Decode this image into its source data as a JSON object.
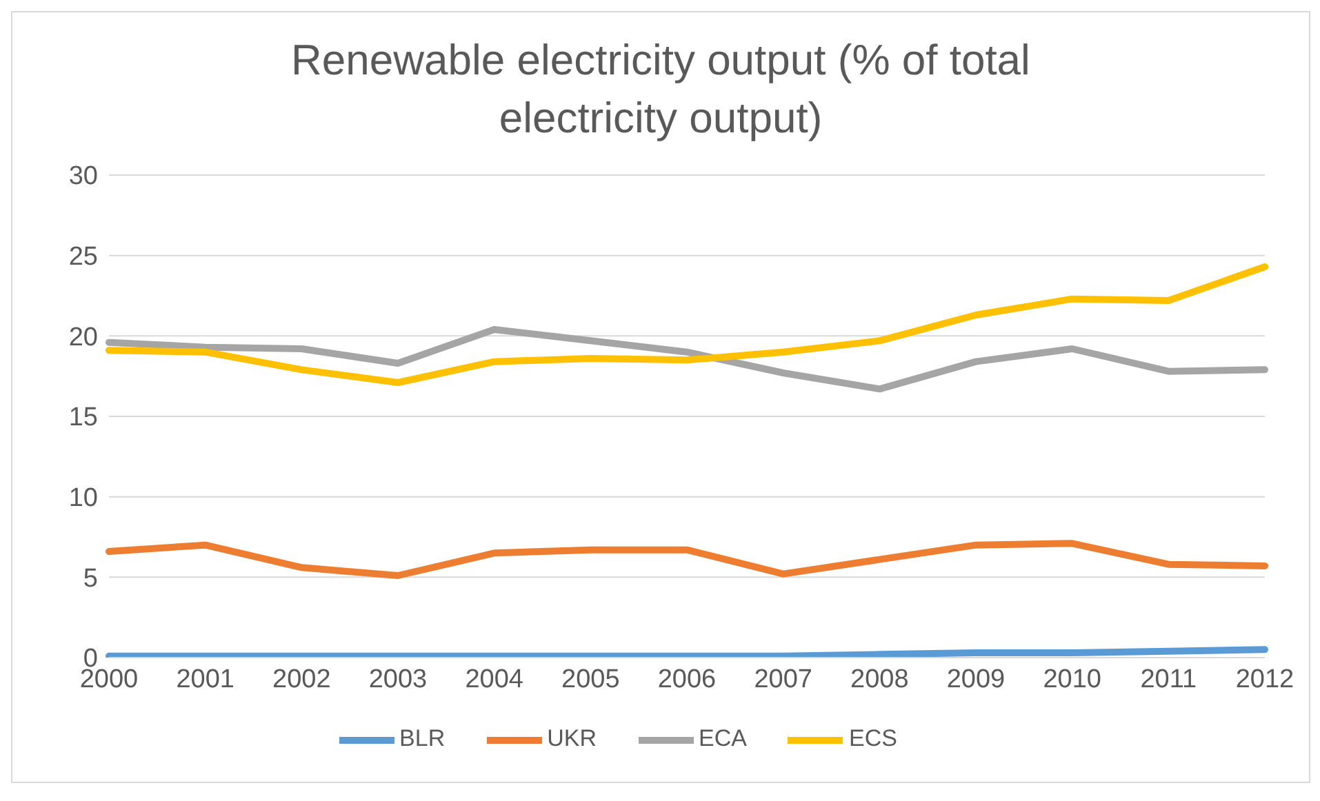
{
  "chart_data": {
    "type": "line",
    "title": "Renewable electricity output (% of total electricity output)",
    "categories": [
      "2000",
      "2001",
      "2002",
      "2003",
      "2004",
      "2005",
      "2006",
      "2007",
      "2008",
      "2009",
      "2010",
      "2011",
      "2012"
    ],
    "series": [
      {
        "name": "BLR",
        "color": "#5b9bd5",
        "values": [
          0.1,
          0.1,
          0.1,
          0.1,
          0.1,
          0.1,
          0.1,
          0.1,
          0.2,
          0.3,
          0.3,
          0.4,
          0.5
        ]
      },
      {
        "name": "UKR",
        "color": "#ed7d31",
        "values": [
          6.6,
          7.0,
          5.6,
          5.1,
          6.5,
          6.7,
          6.7,
          5.2,
          6.1,
          7.0,
          7.1,
          5.8,
          5.7
        ]
      },
      {
        "name": "ECA",
        "color": "#a5a5a5",
        "values": [
          19.6,
          19.3,
          19.2,
          18.3,
          20.4,
          19.7,
          19.0,
          17.7,
          16.7,
          18.4,
          19.2,
          17.8,
          17.9
        ]
      },
      {
        "name": "ECS",
        "color": "#ffc000",
        "values": [
          19.1,
          19.0,
          17.9,
          17.1,
          18.4,
          18.6,
          18.5,
          19.0,
          19.7,
          21.3,
          22.3,
          22.2,
          24.3
        ]
      }
    ],
    "ylim": [
      0,
      30
    ],
    "yticks": [
      0,
      5,
      10,
      15,
      20,
      25,
      30
    ],
    "grid": "y",
    "legend": "bottom",
    "marker": "none",
    "line_style": "solid"
  }
}
